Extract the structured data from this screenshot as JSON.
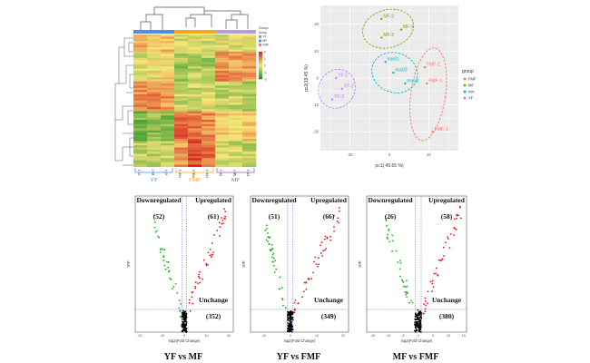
{
  "heatmap": {
    "legend_title": "Group",
    "legend_groups": [
      {
        "name": "YF",
        "color": "#c77cff"
      },
      {
        "name": "MF",
        "color": "#00bfc4"
      },
      {
        "name": "FMF",
        "color": "#f8766d"
      }
    ],
    "color_ticks": [
      "2",
      "1",
      "0",
      "-1",
      "-2"
    ],
    "columns": [
      "YF-1",
      "YF-2",
      "YF-3",
      "FMF-1",
      "FMF-2",
      "FMF-3",
      "MF-1",
      "MF-2",
      "MF-3"
    ],
    "bracket_labels": [
      {
        "text": "YF",
        "color": "#4a90e2"
      },
      {
        "text": "FMF",
        "color": "#f5a623"
      },
      {
        "text": "MF",
        "color": "#9b59b6"
      }
    ],
    "group_bar_colors": [
      "#4a90e2",
      "#f5a623",
      "#b39ddb"
    ]
  },
  "chart_data": [
    {
      "type": "scatter",
      "panel": "pca",
      "xlabel": "pc1( 45.65 %)",
      "ylabel": "pc2(19.45 %)",
      "xticks": [
        "-20",
        "0",
        "20"
      ],
      "yticks": [
        "20",
        "10",
        "0",
        "-10",
        "-20"
      ],
      "xlim": [
        -35,
        35
      ],
      "ylim": [
        -27,
        27
      ],
      "legend_title": "group",
      "legend": [
        {
          "name": "FMF",
          "color": "#f8766d"
        },
        {
          "name": "MF",
          "color": "#7cae00"
        },
        {
          "name": "mix",
          "color": "#00bfc4"
        },
        {
          "name": "YF",
          "color": "#c77cff"
        }
      ],
      "points": [
        {
          "label": "MF-2",
          "x": -4,
          "y": 22,
          "group": "MF"
        },
        {
          "label": "MF-1",
          "x": 6,
          "y": 18,
          "group": "MF"
        },
        {
          "label": "MF-3",
          "x": -4,
          "y": 15,
          "group": "MF"
        },
        {
          "label": "mix01",
          "x": -2,
          "y": 6,
          "group": "mix"
        },
        {
          "label": "mix03",
          "x": 2,
          "y": 2,
          "group": "mix"
        },
        {
          "label": "mix02",
          "x": 8,
          "y": -2,
          "group": "mix"
        },
        {
          "label": "FMF-2",
          "x": 18,
          "y": 4,
          "group": "FMF"
        },
        {
          "label": "FMF-3",
          "x": 19,
          "y": -2,
          "group": "FMF"
        },
        {
          "label": "FMF-1",
          "x": 22,
          "y": -20,
          "group": "FMF"
        },
        {
          "label": "YF-1",
          "x": -27,
          "y": 0,
          "group": "YF"
        },
        {
          "label": "YF-2",
          "x": -24,
          "y": -4,
          "group": "YF"
        },
        {
          "label": "YF-3",
          "x": -29,
          "y": -8,
          "group": "YF"
        }
      ]
    },
    {
      "type": "scatter",
      "panel": "volcano-1",
      "title": "YF vs MF",
      "xlabel": "log2(Fold Change)",
      "ylabel": "VIP",
      "xticks": [
        "-20",
        "-10",
        "0",
        "10",
        "20"
      ],
      "xlim": [
        -22,
        22
      ],
      "ylim": [
        0,
        6
      ],
      "annotations": {
        "down_label": "Downregulated",
        "down_count": "(52)",
        "up_label": "Upregulated",
        "up_count": "(61)",
        "un_label": "Unchange",
        "un_count": "(352)"
      }
    },
    {
      "type": "scatter",
      "panel": "volcano-2",
      "title": "YF vs FMF",
      "xlabel": "log2(Fold Change)",
      "ylabel": "VIP",
      "xticks": [
        "-10",
        "0",
        "10",
        "20"
      ],
      "xlim": [
        -15,
        22
      ],
      "ylim": [
        0,
        6
      ],
      "annotations": {
        "down_label": "Downregulated",
        "down_count": "(51)",
        "up_label": "Upregulated",
        "up_count": "(66)",
        "un_label": "Unchange",
        "un_count": "(349)"
      }
    },
    {
      "type": "scatter",
      "panel": "volcano-3",
      "title": "MF vs FMF",
      "xlabel": "log2(Fold Change)",
      "ylabel": "VIP",
      "xticks": [
        "-15",
        "-10",
        "-5",
        "0",
        "5",
        "10",
        "15"
      ],
      "xlim": [
        -17,
        16
      ],
      "ylim": [
        0,
        6
      ],
      "annotations": {
        "down_label": "Downregulated",
        "down_count": "(26)",
        "up_label": "Upregulated",
        "up_count": "(58)",
        "un_label": "Unchange",
        "un_count": "(380)"
      }
    }
  ]
}
